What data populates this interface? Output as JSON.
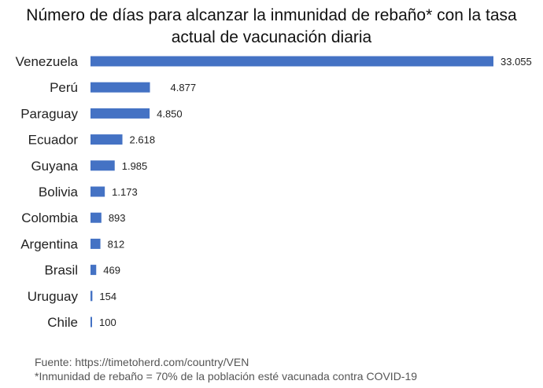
{
  "title_line1": "Número de días para alcanzar la inmunidad de rebaño* con la tasa",
  "title_line2": "actual de vacunación diaria",
  "footer": {
    "source": "Fuente: https://timetoherd.com/country/VEN",
    "note": "*Inmunidad de rebaño = 70% de la población esté vacunada contra COVID-19"
  },
  "colors": {
    "bar": "#4472C4",
    "text": "#1a1a1a"
  },
  "chart_data": {
    "type": "bar",
    "orientation": "horizontal",
    "title": "Número de días para alcanzar la inmunidad de rebaño* con la tasa actual de vacunación diaria",
    "categories": [
      "Venezuela",
      "Perú",
      "Paraguay",
      "Ecuador",
      "Guyana",
      "Bolivia",
      "Colombia",
      "Argentina",
      "Brasil",
      "Uruguay",
      "Chile"
    ],
    "values": [
      33055,
      4877,
      4850,
      2618,
      1985,
      1173,
      893,
      812,
      469,
      154,
      100
    ],
    "value_labels": [
      "33.055",
      "4.877",
      "4.850",
      "2.618",
      "1.985",
      "1.173",
      "893",
      "812",
      "469",
      "154",
      "100"
    ],
    "xlabel": "",
    "ylabel": "",
    "grid": false,
    "legend": "none"
  }
}
